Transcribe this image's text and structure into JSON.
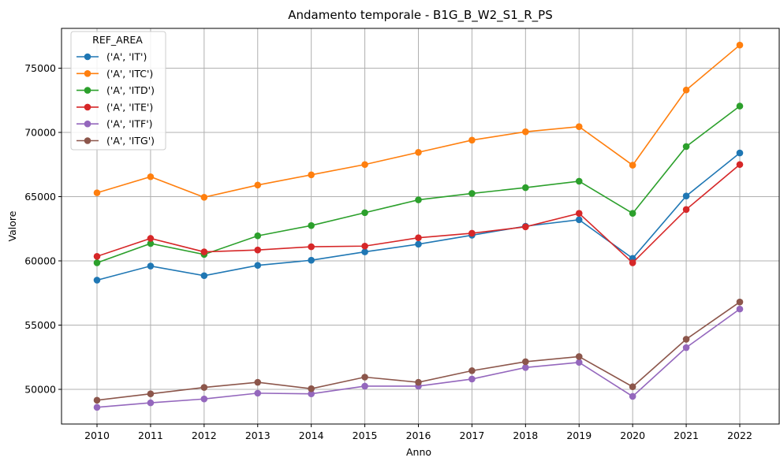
{
  "chart_data": {
    "type": "line",
    "title": "Andamento temporale - B1G_B_W2_S1_R_PS",
    "xlabel": "Anno",
    "ylabel": "Valore",
    "x": [
      2010,
      2011,
      2012,
      2013,
      2014,
      2015,
      2016,
      2017,
      2018,
      2019,
      2020,
      2021,
      2022
    ],
    "x_tick_labels": [
      "2010",
      "2011",
      "2012",
      "2013",
      "2014",
      "2015",
      "2016",
      "2017",
      "2018",
      "2019",
      "2020",
      "2021",
      "2022"
    ],
    "ylim": [
      47300,
      78100
    ],
    "y_ticks": [
      50000,
      55000,
      60000,
      65000,
      70000,
      75000
    ],
    "y_tick_labels": [
      "50000",
      "55000",
      "60000",
      "65000",
      "70000",
      "75000"
    ],
    "grid": true,
    "legend": {
      "title": "REF_AREA",
      "placement": "top-left"
    },
    "series": [
      {
        "name": "('A', 'IT')",
        "color": "#1f77b4",
        "values": [
          58500,
          59600,
          58850,
          59650,
          60050,
          60700,
          61300,
          62000,
          62700,
          63200,
          60200,
          65050,
          68400
        ]
      },
      {
        "name": "('A', 'ITC')",
        "color": "#ff7f0e",
        "values": [
          65300,
          66550,
          64950,
          65900,
          66700,
          67500,
          68450,
          69400,
          70050,
          70450,
          67450,
          73300,
          76800
        ]
      },
      {
        "name": "('A', 'ITD')",
        "color": "#2ca02c",
        "values": [
          59850,
          61350,
          60500,
          61950,
          62750,
          63750,
          64750,
          65250,
          65700,
          66200,
          63700,
          68900,
          72050
        ]
      },
      {
        "name": "('A', 'ITE')",
        "color": "#d62728",
        "values": [
          60350,
          61750,
          60700,
          60850,
          61100,
          61150,
          61800,
          62150,
          62650,
          63700,
          59850,
          64000,
          67500
        ]
      },
      {
        "name": "('A', 'ITF')",
        "color": "#9467bd",
        "values": [
          48600,
          48950,
          49250,
          49700,
          49650,
          50250,
          50250,
          50800,
          51700,
          52100,
          49450,
          53250,
          56250
        ]
      },
      {
        "name": "('A', 'ITG')",
        "color": "#8c564b",
        "values": [
          49150,
          49650,
          50150,
          50550,
          50050,
          50950,
          50550,
          51450,
          52150,
          52550,
          50200,
          53900,
          56800
        ]
      }
    ]
  }
}
